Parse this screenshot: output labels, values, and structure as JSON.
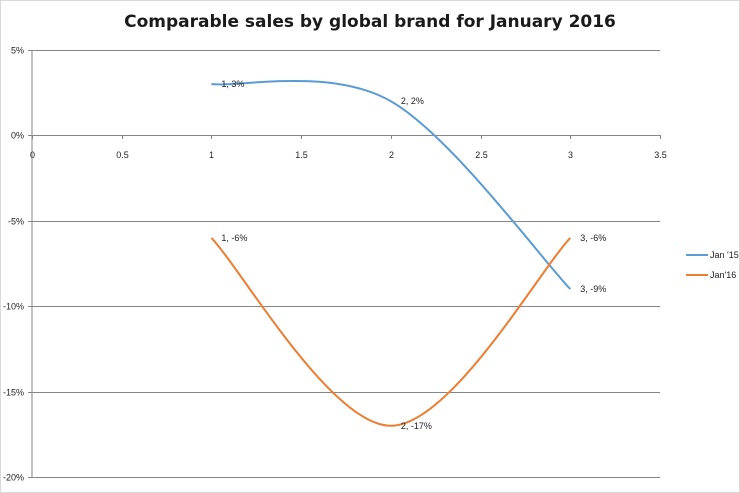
{
  "chart_data": {
    "type": "line",
    "title": "Comparable sales by global brand for January 2016",
    "xlabel": "",
    "ylabel": "",
    "xlim": [
      0,
      3.5
    ],
    "ylim": [
      -0.2,
      0.05
    ],
    "x_ticks": [
      "0",
      "0.5",
      "1",
      "1.5",
      "2",
      "2.5",
      "3",
      "3.5"
    ],
    "y_ticks": [
      "5%",
      "0%",
      "-5%",
      "-10%",
      "-15%",
      "-20%"
    ],
    "grid": "horizontal",
    "smoothed": true,
    "legend_position": "right",
    "series": [
      {
        "name": "Jan '15",
        "color": "#5b9bd5",
        "x": [
          1,
          2,
          3
        ],
        "y": [
          0.03,
          0.02,
          -0.09
        ],
        "labels": [
          "1, 3%",
          "2, 2%",
          "3, -9%"
        ]
      },
      {
        "name": "Jan'16",
        "color": "#ed7d31",
        "x": [
          1,
          2,
          3
        ],
        "y": [
          -0.06,
          -0.17,
          -0.06
        ],
        "labels": [
          "1, -6%",
          "2, -17%",
          "3, -6%"
        ]
      }
    ]
  }
}
